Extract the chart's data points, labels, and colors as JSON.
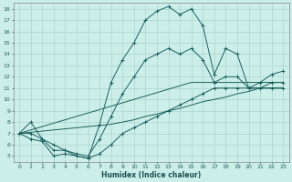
{
  "xlabel": "Humidex (Indice chaleur)",
  "bg_color": "#cceee8",
  "grid_color": "#aad4ce",
  "line_color": "#1a6060",
  "xlim": [
    -0.5,
    23.5
  ],
  "ylim": [
    4.5,
    18.5
  ],
  "yticks": [
    5,
    6,
    7,
    8,
    9,
    10,
    11,
    12,
    13,
    14,
    15,
    16,
    17,
    18
  ],
  "xticks": [
    0,
    1,
    2,
    3,
    4,
    5,
    6,
    7,
    8,
    9,
    10,
    11,
    12,
    13,
    14,
    15,
    16,
    17,
    18,
    19,
    20,
    21,
    22,
    23
  ],
  "hours": [
    0,
    1,
    2,
    3,
    4,
    5,
    6,
    7,
    8,
    9,
    10,
    11,
    12,
    13,
    14,
    15,
    16,
    17,
    18,
    19,
    20,
    21,
    22,
    23
  ],
  "max_curve": [
    7.0,
    8.0,
    6.5,
    6.0,
    5.5,
    5.0,
    4.8,
    7.8,
    11.5,
    13.5,
    15.0,
    17.0,
    17.8,
    18.2,
    17.5,
    18.0,
    16.5,
    12.2,
    14.5,
    14.0,
    11.0,
    11.5,
    12.2,
    12.5
  ],
  "min_curve": [
    7.0,
    6.5,
    6.3,
    5.0,
    5.2,
    5.0,
    4.8,
    5.2,
    6.0,
    7.0,
    7.5,
    8.0,
    8.5,
    9.0,
    9.5,
    10.0,
    10.5,
    11.0,
    11.0,
    11.0,
    11.0,
    11.0,
    11.0,
    11.0
  ],
  "mean_curve": [
    7.0,
    7.0,
    6.5,
    5.5,
    5.5,
    5.2,
    5.0,
    6.5,
    8.5,
    10.5,
    12.0,
    13.5,
    14.0,
    14.5,
    14.0,
    14.5,
    13.5,
    11.5,
    12.0,
    12.0,
    11.0,
    11.0,
    11.5,
    11.5
  ],
  "lin_curve1": [
    7.0,
    7.3,
    7.6,
    7.9,
    8.2,
    8.5,
    8.8,
    9.1,
    9.4,
    9.7,
    10.0,
    10.3,
    10.6,
    10.9,
    11.2,
    11.5,
    11.5,
    11.5,
    11.5,
    11.5,
    11.5,
    11.5,
    11.5,
    11.5
  ],
  "lin_curve2": [
    7.0,
    7.1,
    7.2,
    7.3,
    7.4,
    7.5,
    7.6,
    7.7,
    7.8,
    8.0,
    8.2,
    8.5,
    8.7,
    9.0,
    9.2,
    9.5,
    9.8,
    10.0,
    10.2,
    10.5,
    10.7,
    11.0,
    11.0,
    11.0
  ]
}
